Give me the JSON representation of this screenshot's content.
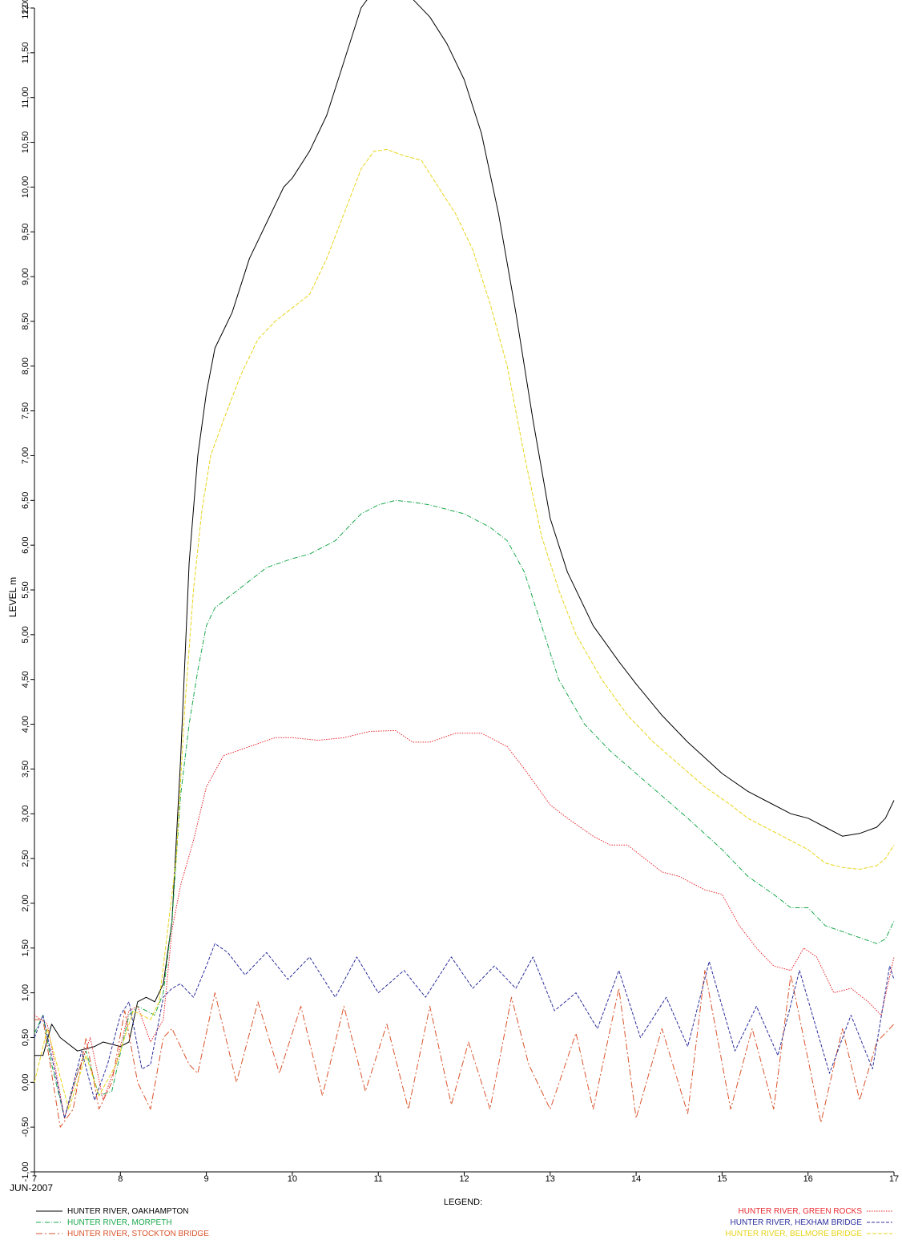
{
  "chart_data": {
    "type": "line",
    "ylabel": "LEVEL  m",
    "xlabel": "",
    "date_label": "JUN-2007",
    "legend_title": "LEGEND:",
    "xlim": [
      7,
      17
    ],
    "ylim": [
      -1.0,
      12.0
    ],
    "x_ticks": [
      "7",
      "8",
      "9",
      "10",
      "11",
      "12",
      "13",
      "14",
      "15",
      "16",
      "17"
    ],
    "y_ticks": [
      "-1,00",
      "-0,50",
      "0,00",
      "0,50",
      "1,00",
      "1,50",
      "2,00",
      "2,50",
      "3,00",
      "3,50",
      "4,00",
      "4,50",
      "5,00",
      "5,50",
      "6,00",
      "6,50",
      "7,00",
      "7,50",
      "8,00",
      "8,50",
      "9,00",
      "9,50",
      "10,00",
      "10,50",
      "11,00",
      "11,50",
      "12,00",
      "12"
    ],
    "grid": false,
    "series": [
      {
        "name": "HUNTER RIVER, OAKHAMPTON",
        "color": "#000000",
        "dash": "none",
        "legend_side": "left",
        "x": [
          7.0,
          7.1,
          7.2,
          7.3,
          7.5,
          7.7,
          7.8,
          8.0,
          8.1,
          8.2,
          8.3,
          8.4,
          8.5,
          8.6,
          8.7,
          8.8,
          8.9,
          9.0,
          9.1,
          9.2,
          9.3,
          9.5,
          9.7,
          9.9,
          10.0,
          10.2,
          10.4,
          10.6,
          10.8,
          10.95,
          11.1,
          11.2,
          11.4,
          11.6,
          11.8,
          12.0,
          12.2,
          12.4,
          12.6,
          12.8,
          13.0,
          13.2,
          13.5,
          13.8,
          14.0,
          14.3,
          14.6,
          15.0,
          15.3,
          15.5,
          15.8,
          16.0,
          16.2,
          16.4,
          16.6,
          16.8,
          16.9,
          17.0
        ],
        "y": [
          0.3,
          0.3,
          0.65,
          0.5,
          0.35,
          0.4,
          0.45,
          0.4,
          0.45,
          0.9,
          0.95,
          0.9,
          1.1,
          1.8,
          3.6,
          5.8,
          7.0,
          7.7,
          8.2,
          8.4,
          8.6,
          9.2,
          9.6,
          10.0,
          10.1,
          10.4,
          10.8,
          11.4,
          12.0,
          12.2,
          12.25,
          12.22,
          12.1,
          11.9,
          11.6,
          11.2,
          10.6,
          9.7,
          8.6,
          7.4,
          6.3,
          5.7,
          5.1,
          4.7,
          4.45,
          4.1,
          3.8,
          3.45,
          3.25,
          3.15,
          3.0,
          2.95,
          2.85,
          2.75,
          2.78,
          2.85,
          2.95,
          3.15
        ]
      },
      {
        "name": "HUNTER RIVER, MORPETH",
        "color": "#1aa84c",
        "dash": "6 2 1 2",
        "legend_side": "left",
        "x": [
          7.0,
          7.1,
          7.2,
          7.35,
          7.5,
          7.6,
          7.75,
          7.9,
          8.1,
          8.2,
          8.3,
          8.4,
          8.5,
          8.6,
          8.7,
          8.8,
          8.9,
          9.0,
          9.1,
          9.3,
          9.5,
          9.7,
          10.0,
          10.2,
          10.5,
          10.8,
          11.0,
          11.2,
          11.4,
          11.6,
          12.0,
          12.3,
          12.5,
          12.7,
          12.9,
          13.1,
          13.4,
          13.7,
          14.0,
          14.3,
          14.6,
          15.0,
          15.3,
          15.6,
          15.8,
          16.0,
          16.2,
          16.5,
          16.8,
          16.9,
          17.0
        ],
        "y": [
          0.55,
          0.75,
          0.2,
          -0.4,
          0.1,
          0.35,
          -0.15,
          -0.1,
          0.75,
          0.85,
          0.8,
          0.75,
          1.0,
          1.8,
          3.2,
          4.0,
          4.6,
          5.1,
          5.3,
          5.45,
          5.6,
          5.75,
          5.85,
          5.9,
          6.05,
          6.35,
          6.45,
          6.5,
          6.48,
          6.45,
          6.35,
          6.2,
          6.05,
          5.7,
          5.1,
          4.5,
          4.0,
          3.7,
          3.45,
          3.2,
          2.95,
          2.6,
          2.3,
          2.1,
          1.95,
          1.95,
          1.75,
          1.65,
          1.55,
          1.6,
          1.8
        ]
      },
      {
        "name": "HUNTER RIVER, STOCKTON BRIDGE",
        "color": "#d9532b",
        "dash": "8 3 2 3",
        "legend_side": "left",
        "x": [
          7.0,
          7.1,
          7.3,
          7.45,
          7.6,
          7.75,
          7.9,
          8.05,
          8.2,
          8.35,
          8.5,
          8.6,
          8.8,
          8.9,
          9.1,
          9.35,
          9.6,
          9.85,
          10.1,
          10.35,
          10.6,
          10.85,
          11.1,
          11.35,
          11.6,
          11.85,
          12.05,
          12.3,
          12.55,
          12.75,
          13.0,
          13.3,
          13.5,
          13.8,
          14.0,
          14.3,
          14.6,
          14.8,
          15.1,
          15.35,
          15.6,
          15.8,
          16.15,
          16.4,
          16.6,
          16.8,
          17.0
        ],
        "y": [
          0.7,
          0.7,
          -0.5,
          -0.3,
          0.5,
          -0.3,
          0.0,
          0.8,
          0.0,
          -0.3,
          0.5,
          0.6,
          0.2,
          0.1,
          1.0,
          0.0,
          0.9,
          0.1,
          0.85,
          -0.15,
          0.85,
          -0.1,
          0.65,
          -0.3,
          0.85,
          -0.25,
          0.45,
          -0.3,
          0.95,
          0.2,
          -0.3,
          0.55,
          -0.3,
          1.05,
          -0.4,
          0.6,
          -0.35,
          1.25,
          -0.3,
          0.6,
          -0.3,
          1.2,
          -0.45,
          0.6,
          -0.2,
          0.45,
          0.65
        ]
      },
      {
        "name": "HUNTER RIVER, GREEN ROCKS",
        "color": "#e8282e",
        "dash": "1.5 1.5",
        "legend_side": "right",
        "x": [
          7.0,
          7.15,
          7.35,
          7.5,
          7.65,
          7.8,
          7.95,
          8.1,
          8.2,
          8.35,
          8.5,
          8.6,
          8.7,
          8.85,
          9.0,
          9.2,
          9.5,
          9.8,
          10.0,
          10.3,
          10.6,
          10.9,
          11.2,
          11.4,
          11.6,
          11.9,
          12.2,
          12.5,
          12.7,
          12.85,
          13.0,
          13.2,
          13.5,
          13.7,
          13.9,
          14.1,
          14.3,
          14.5,
          14.8,
          15.0,
          15.2,
          15.4,
          15.6,
          15.8,
          15.95,
          16.1,
          16.3,
          16.5,
          16.7,
          16.85,
          17.0
        ],
        "y": [
          0.75,
          0.65,
          -0.4,
          0.1,
          0.5,
          -0.2,
          0.2,
          0.8,
          0.85,
          0.45,
          0.7,
          1.7,
          2.2,
          2.7,
          3.3,
          3.65,
          3.75,
          3.85,
          3.85,
          3.82,
          3.85,
          3.92,
          3.93,
          3.8,
          3.8,
          3.9,
          3.9,
          3.75,
          3.5,
          3.3,
          3.1,
          2.95,
          2.75,
          2.65,
          2.65,
          2.5,
          2.35,
          2.3,
          2.15,
          2.1,
          1.75,
          1.5,
          1.3,
          1.25,
          1.5,
          1.4,
          1.0,
          1.05,
          0.9,
          0.75,
          1.4
        ]
      },
      {
        "name": "HUNTER RIVER, HEXHAM BRIDGE",
        "color": "#2c2f9c",
        "dash": "4 2",
        "legend_side": "right",
        "x": [
          7.0,
          7.1,
          7.35,
          7.55,
          7.7,
          7.85,
          8.0,
          8.1,
          8.25,
          8.35,
          8.5,
          8.6,
          8.7,
          8.85,
          9.0,
          9.1,
          9.25,
          9.45,
          9.7,
          9.95,
          10.2,
          10.5,
          10.75,
          11.0,
          11.3,
          11.55,
          11.85,
          12.1,
          12.35,
          12.6,
          12.8,
          13.05,
          13.3,
          13.55,
          13.8,
          14.05,
          14.35,
          14.6,
          14.85,
          15.15,
          15.4,
          15.65,
          15.9,
          16.25,
          16.5,
          16.75,
          16.95,
          17.0
        ],
        "y": [
          0.5,
          0.75,
          -0.4,
          0.35,
          -0.2,
          0.2,
          0.75,
          0.9,
          0.15,
          0.2,
          0.95,
          1.05,
          1.1,
          0.95,
          1.3,
          1.55,
          1.45,
          1.2,
          1.45,
          1.15,
          1.4,
          0.95,
          1.4,
          1.0,
          1.25,
          0.95,
          1.4,
          1.05,
          1.3,
          1.05,
          1.4,
          0.8,
          1.0,
          0.6,
          1.25,
          0.5,
          0.95,
          0.4,
          1.35,
          0.35,
          0.85,
          0.3,
          1.25,
          0.1,
          0.75,
          0.15,
          1.3,
          1.15
        ]
      },
      {
        "name": "HUNTER RIVER, BELMORE BRIDGE",
        "color": "#e8d51a",
        "dash": "5 2",
        "legend_side": "right",
        "x": [
          7.0,
          7.15,
          7.4,
          7.6,
          7.75,
          7.95,
          8.15,
          8.25,
          8.35,
          8.45,
          8.55,
          8.65,
          8.75,
          8.85,
          8.95,
          9.05,
          9.2,
          9.4,
          9.6,
          9.8,
          10.0,
          10.2,
          10.4,
          10.6,
          10.8,
          10.95,
          11.1,
          11.3,
          11.5,
          11.7,
          11.9,
          12.1,
          12.3,
          12.5,
          12.7,
          12.9,
          13.1,
          13.3,
          13.6,
          13.9,
          14.2,
          14.5,
          14.8,
          15.1,
          15.3,
          15.5,
          15.8,
          16.0,
          16.2,
          16.4,
          16.6,
          16.8,
          16.9,
          17.0
        ],
        "y": [
          0.0,
          0.6,
          -0.3,
          0.3,
          -0.15,
          0.2,
          0.8,
          0.75,
          0.7,
          0.9,
          1.7,
          2.5,
          4.2,
          5.5,
          6.4,
          7.0,
          7.4,
          7.9,
          8.3,
          8.5,
          8.65,
          8.8,
          9.2,
          9.7,
          10.2,
          10.4,
          10.42,
          10.35,
          10.3,
          10.0,
          9.7,
          9.3,
          8.7,
          8.0,
          7.0,
          6.1,
          5.5,
          5.0,
          4.5,
          4.1,
          3.8,
          3.55,
          3.3,
          3.1,
          2.95,
          2.85,
          2.7,
          2.6,
          2.45,
          2.4,
          2.38,
          2.42,
          2.5,
          2.65
        ]
      }
    ]
  }
}
